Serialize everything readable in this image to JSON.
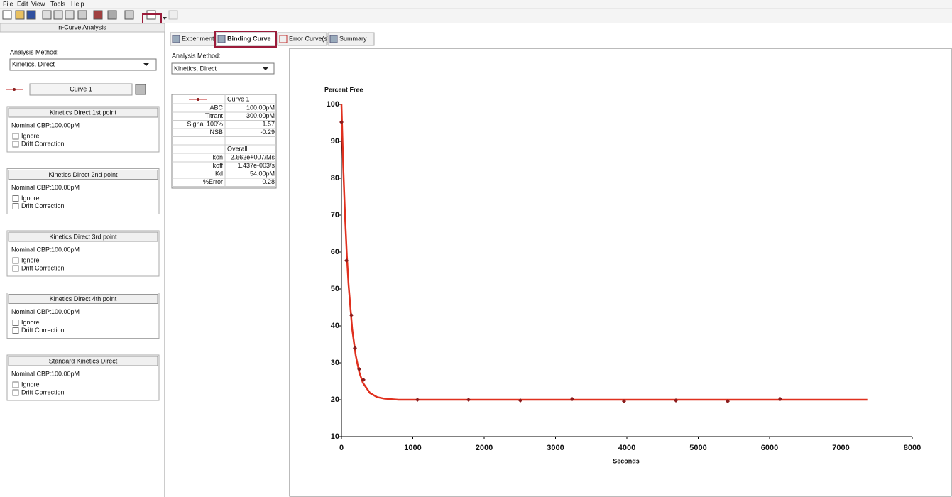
{
  "menu": [
    "File",
    "Edit",
    "View",
    "Tools",
    "Help"
  ],
  "left_panel": {
    "title": "n-Curve Analysis",
    "method_label": "Analysis Method:",
    "method": "Kinetics, Direct",
    "curve": "Curve 1",
    "groups": [
      {
        "title": "Kinetics Direct 1st point",
        "nominal_label": "Nominal CBP:",
        "nominal": "100.00pM",
        "options": [
          "Ignore",
          "Drift Correction"
        ]
      },
      {
        "title": "Kinetics Direct 2nd point",
        "nominal_label": "Nominal CBP:",
        "nominal": "100.00pM",
        "options": [
          "Ignore",
          "Drift Correction"
        ]
      },
      {
        "title": "Kinetics Direct 3rd point",
        "nominal_label": "Nominal CBP:",
        "nominal": "100.00pM",
        "options": [
          "Ignore",
          "Drift Correction"
        ]
      },
      {
        "title": "Kinetics Direct 4th point",
        "nominal_label": "Nominal CBP:",
        "nominal": "100.00pM",
        "options": [
          "Ignore",
          "Drift Correction"
        ]
      },
      {
        "title": "Standard Kinetics Direct",
        "nominal_label": "Nominal CBP:",
        "nominal": "100.00pM",
        "options": [
          "Ignore",
          "Drift Correction"
        ]
      }
    ]
  },
  "tabs": [
    "Experiment",
    "Binding Curve",
    "Error Curve(s)",
    "Summary"
  ],
  "middle_panel": {
    "method_label": "Analysis Method:",
    "method": "Kinetics, Direct",
    "table": {
      "header": "Curve 1",
      "params": [
        [
          "ABC",
          "100.00pM"
        ],
        [
          "Titrant",
          "300.00pM"
        ],
        [
          "Signal 100%",
          "1.57"
        ],
        [
          "NSB",
          "-0.29"
        ]
      ],
      "section": "Overall",
      "results": [
        [
          "kon",
          "2.662e+007/Ms"
        ],
        [
          "koff",
          "1.437e-003/s"
        ],
        [
          "Kd",
          "54.00pM"
        ],
        [
          "%Error",
          "0.28"
        ]
      ]
    }
  },
  "chart_data": {
    "type": "scatter",
    "title": "Percent Free",
    "xlabel": "Seconds",
    "xlim": [
      0,
      8000
    ],
    "ylim": [
      10,
      100
    ],
    "xticks": [
      0,
      1000,
      2000,
      3000,
      4000,
      5000,
      6000,
      7000,
      8000
    ],
    "yticks": [
      10,
      20,
      30,
      40,
      50,
      60,
      70,
      80,
      90,
      100
    ],
    "series": [
      {
        "mode": "markers",
        "color": "#8b1c1c",
        "x": [
          0,
          70,
          139,
          189,
          249,
          308,
          1065,
          1781,
          2507,
          3234,
          3960,
          4687,
          5413,
          6149
        ],
        "values": [
          95.2,
          57.7,
          42.9,
          34.0,
          28.3,
          25.4,
          20.0,
          20.0,
          19.8,
          20.2,
          19.6,
          19.8,
          19.6,
          20.2
        ]
      },
      {
        "mode": "line",
        "color": "#e0301e",
        "x": [
          0,
          25,
          50,
          75,
          100,
          150,
          200,
          250,
          300,
          400,
          500,
          600,
          800,
          1000,
          2000,
          4000,
          6000,
          7370
        ],
        "values": [
          100,
          83.1,
          69.8,
          59.2,
          51.0,
          39.2,
          32.0,
          27.4,
          24.6,
          21.8,
          20.7,
          20.3,
          20.0,
          20.0,
          20.0,
          20.0,
          20.0,
          20.0
        ]
      }
    ]
  }
}
